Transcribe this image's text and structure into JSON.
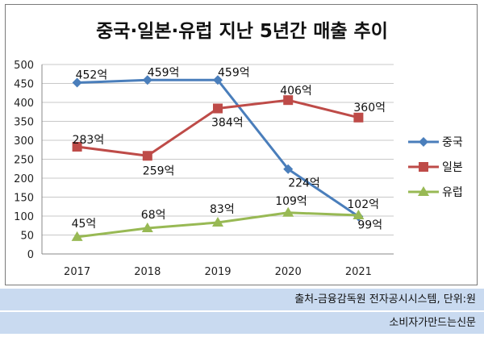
{
  "chart_data": {
    "type": "line",
    "title": "중국·일본·유럽 지난 5년간 매출 추이",
    "categories": [
      "2017",
      "2018",
      "2019",
      "2020",
      "2021"
    ],
    "ylim": [
      0,
      500
    ],
    "yticks": [
      "0",
      "50",
      "100",
      "150",
      "200",
      "250",
      "300",
      "350",
      "400",
      "450",
      "500"
    ],
    "grid": true,
    "legend_position": "right",
    "series": [
      {
        "name": "중국",
        "values": [
          452,
          459,
          459,
          224,
          99
        ],
        "labels": [
          "452억",
          "459억",
          "459억",
          "224억",
          "99억"
        ],
        "color": "#4a7ebb",
        "marker": "diamond"
      },
      {
        "name": "일본",
        "values": [
          283,
          259,
          384,
          406,
          360
        ],
        "labels": [
          "283억",
          "259억",
          "384억",
          "406억",
          "360억"
        ],
        "color": "#be4b48",
        "marker": "square"
      },
      {
        "name": "유럽",
        "values": [
          45,
          68,
          83,
          109,
          102
        ],
        "labels": [
          "45억",
          "68억",
          "83억",
          "109억",
          "102억"
        ],
        "color": "#98b954",
        "marker": "triangle"
      }
    ]
  },
  "footer": {
    "source": "출처-금융감독원 전자공시시스템, 단위:원",
    "publisher": "소비자가만드는신문"
  }
}
